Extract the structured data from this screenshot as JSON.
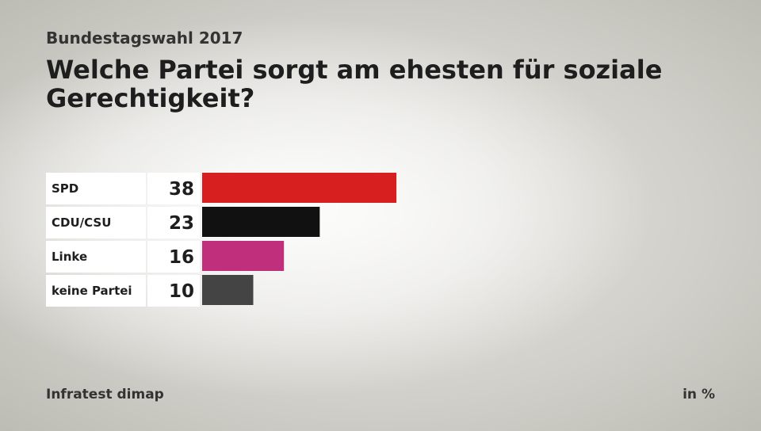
{
  "header": {
    "subtitle": "Bundestagswahl 2017",
    "title": "Welche Partei sorgt am ehesten für soziale Gerechtigkeit?"
  },
  "footer": {
    "source": "Infratest dimap",
    "unit": "in %"
  },
  "chart_data": {
    "type": "bar",
    "orientation": "horizontal",
    "title": "Welche Partei sorgt am ehesten für soziale Gerechtigkeit?",
    "categories": [
      "SPD",
      "CDU/CSU",
      "Linke",
      "keine Partei"
    ],
    "values": [
      38,
      23,
      16,
      10
    ],
    "colors": [
      "#d71f1f",
      "#111111",
      "#bf2f7c",
      "#444444"
    ],
    "xlim": [
      0,
      100
    ],
    "grid": false,
    "legend": "none"
  }
}
